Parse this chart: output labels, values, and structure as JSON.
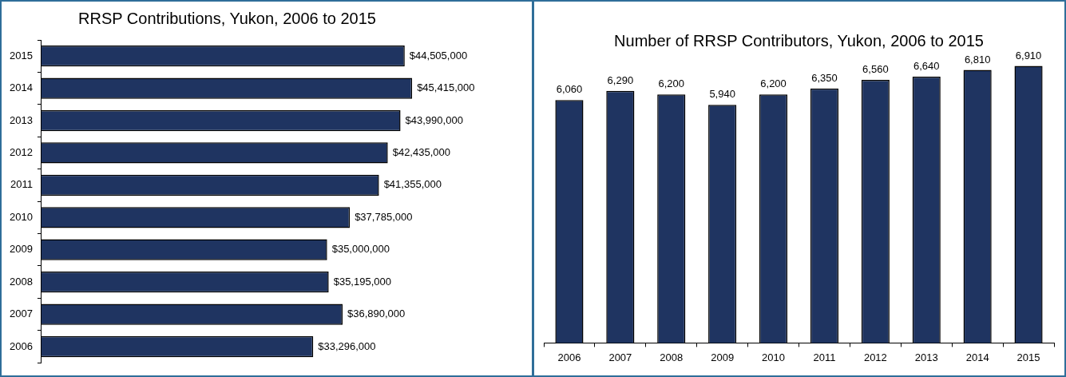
{
  "chart_data": [
    {
      "type": "bar",
      "title": "RRSP Contributions, Yukon, 2006 to 2015",
      "orientation": "horizontal",
      "categories": [
        "2015",
        "2014",
        "2013",
        "2012",
        "2011",
        "2010",
        "2009",
        "2008",
        "2007",
        "2006"
      ],
      "values": [
        44505000,
        45415000,
        43990000,
        42435000,
        41355000,
        37785000,
        35000000,
        35195000,
        36890000,
        33296000
      ],
      "value_labels": [
        "$44,505,000",
        "$45,415,000",
        "$43,990,000",
        "$42,435,000",
        "$41,355,000",
        "$37,785,000",
        "$35,000,000",
        "$35,195,000",
        "$36,890,000",
        "$33,296,000"
      ],
      "color": "#1f3461",
      "tick_labels": "y",
      "legend": false
    },
    {
      "type": "bar",
      "title": "Number of RRSP Contributors, Yukon, 2006 to 2015",
      "categories": [
        "2006",
        "2007",
        "2008",
        "2009",
        "2010",
        "2011",
        "2012",
        "2013",
        "2014",
        "2015"
      ],
      "values": [
        6060,
        6290,
        6200,
        5940,
        6200,
        6350,
        6560,
        6640,
        6810,
        6910
      ],
      "value_labels": [
        "6,060",
        "6,290",
        "6,200",
        "5,940",
        "6,200",
        "6,350",
        "6,560",
        "6,640",
        "6,810",
        "6,910"
      ],
      "color": "#1f3461",
      "tick_labels": "x",
      "legend": false
    }
  ]
}
